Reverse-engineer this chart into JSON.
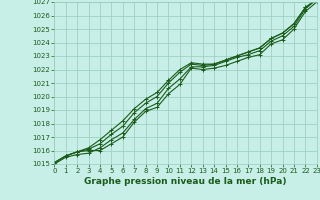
{
  "title": "Graphe pression niveau de la mer (hPa)",
  "xlabel": "Graphe pression niveau de la mer (hPa)",
  "ylim": [
    1015,
    1027
  ],
  "xlim": [
    0,
    23
  ],
  "yticks": [
    1015,
    1016,
    1017,
    1018,
    1019,
    1020,
    1021,
    1022,
    1023,
    1024,
    1025,
    1026,
    1027
  ],
  "xticks": [
    0,
    1,
    2,
    3,
    4,
    5,
    6,
    7,
    8,
    9,
    10,
    11,
    12,
    13,
    14,
    15,
    16,
    17,
    18,
    19,
    20,
    21,
    22,
    23
  ],
  "background_color": "#c8eee8",
  "grid_color": "#98ccbb",
  "line_color": "#1a5c1a",
  "lines": [
    [
      1015.1,
      1015.6,
      1015.9,
      1016.0,
      1016.0,
      1016.5,
      1017.0,
      1018.1,
      1018.9,
      1019.2,
      1020.2,
      1020.9,
      1022.1,
      1022.0,
      1022.1,
      1022.3,
      1022.6,
      1022.9,
      1023.1,
      1023.9,
      1024.2,
      1025.0,
      1026.3,
      1027.0
    ],
    [
      1015.0,
      1015.5,
      1015.7,
      1015.8,
      1016.2,
      1016.8,
      1017.3,
      1018.3,
      1019.1,
      1019.5,
      1020.6,
      1021.3,
      1022.2,
      1022.2,
      1022.3,
      1022.6,
      1022.9,
      1023.1,
      1023.4,
      1024.1,
      1024.5,
      1025.2,
      1026.5,
      1027.2
    ],
    [
      1015.1,
      1015.6,
      1015.9,
      1016.1,
      1016.5,
      1017.2,
      1017.8,
      1018.8,
      1019.5,
      1020.0,
      1021.0,
      1021.8,
      1022.4,
      1022.3,
      1022.4,
      1022.7,
      1023.0,
      1023.3,
      1023.6,
      1024.3,
      1024.7,
      1025.4,
      1026.6,
      1027.2
    ],
    [
      1015.1,
      1015.6,
      1015.9,
      1016.2,
      1016.8,
      1017.5,
      1018.2,
      1019.1,
      1019.8,
      1020.3,
      1021.2,
      1022.0,
      1022.5,
      1022.4,
      1022.4,
      1022.7,
      1023.0,
      1023.3,
      1023.6,
      1024.3,
      1024.7,
      1025.4,
      1026.6,
      1027.2
    ]
  ],
  "marker": "+",
  "marker_size": 3,
  "line_width": 0.8,
  "font_color": "#1a5c1a",
  "tick_fontsize": 5,
  "xlabel_fontsize": 6.5
}
